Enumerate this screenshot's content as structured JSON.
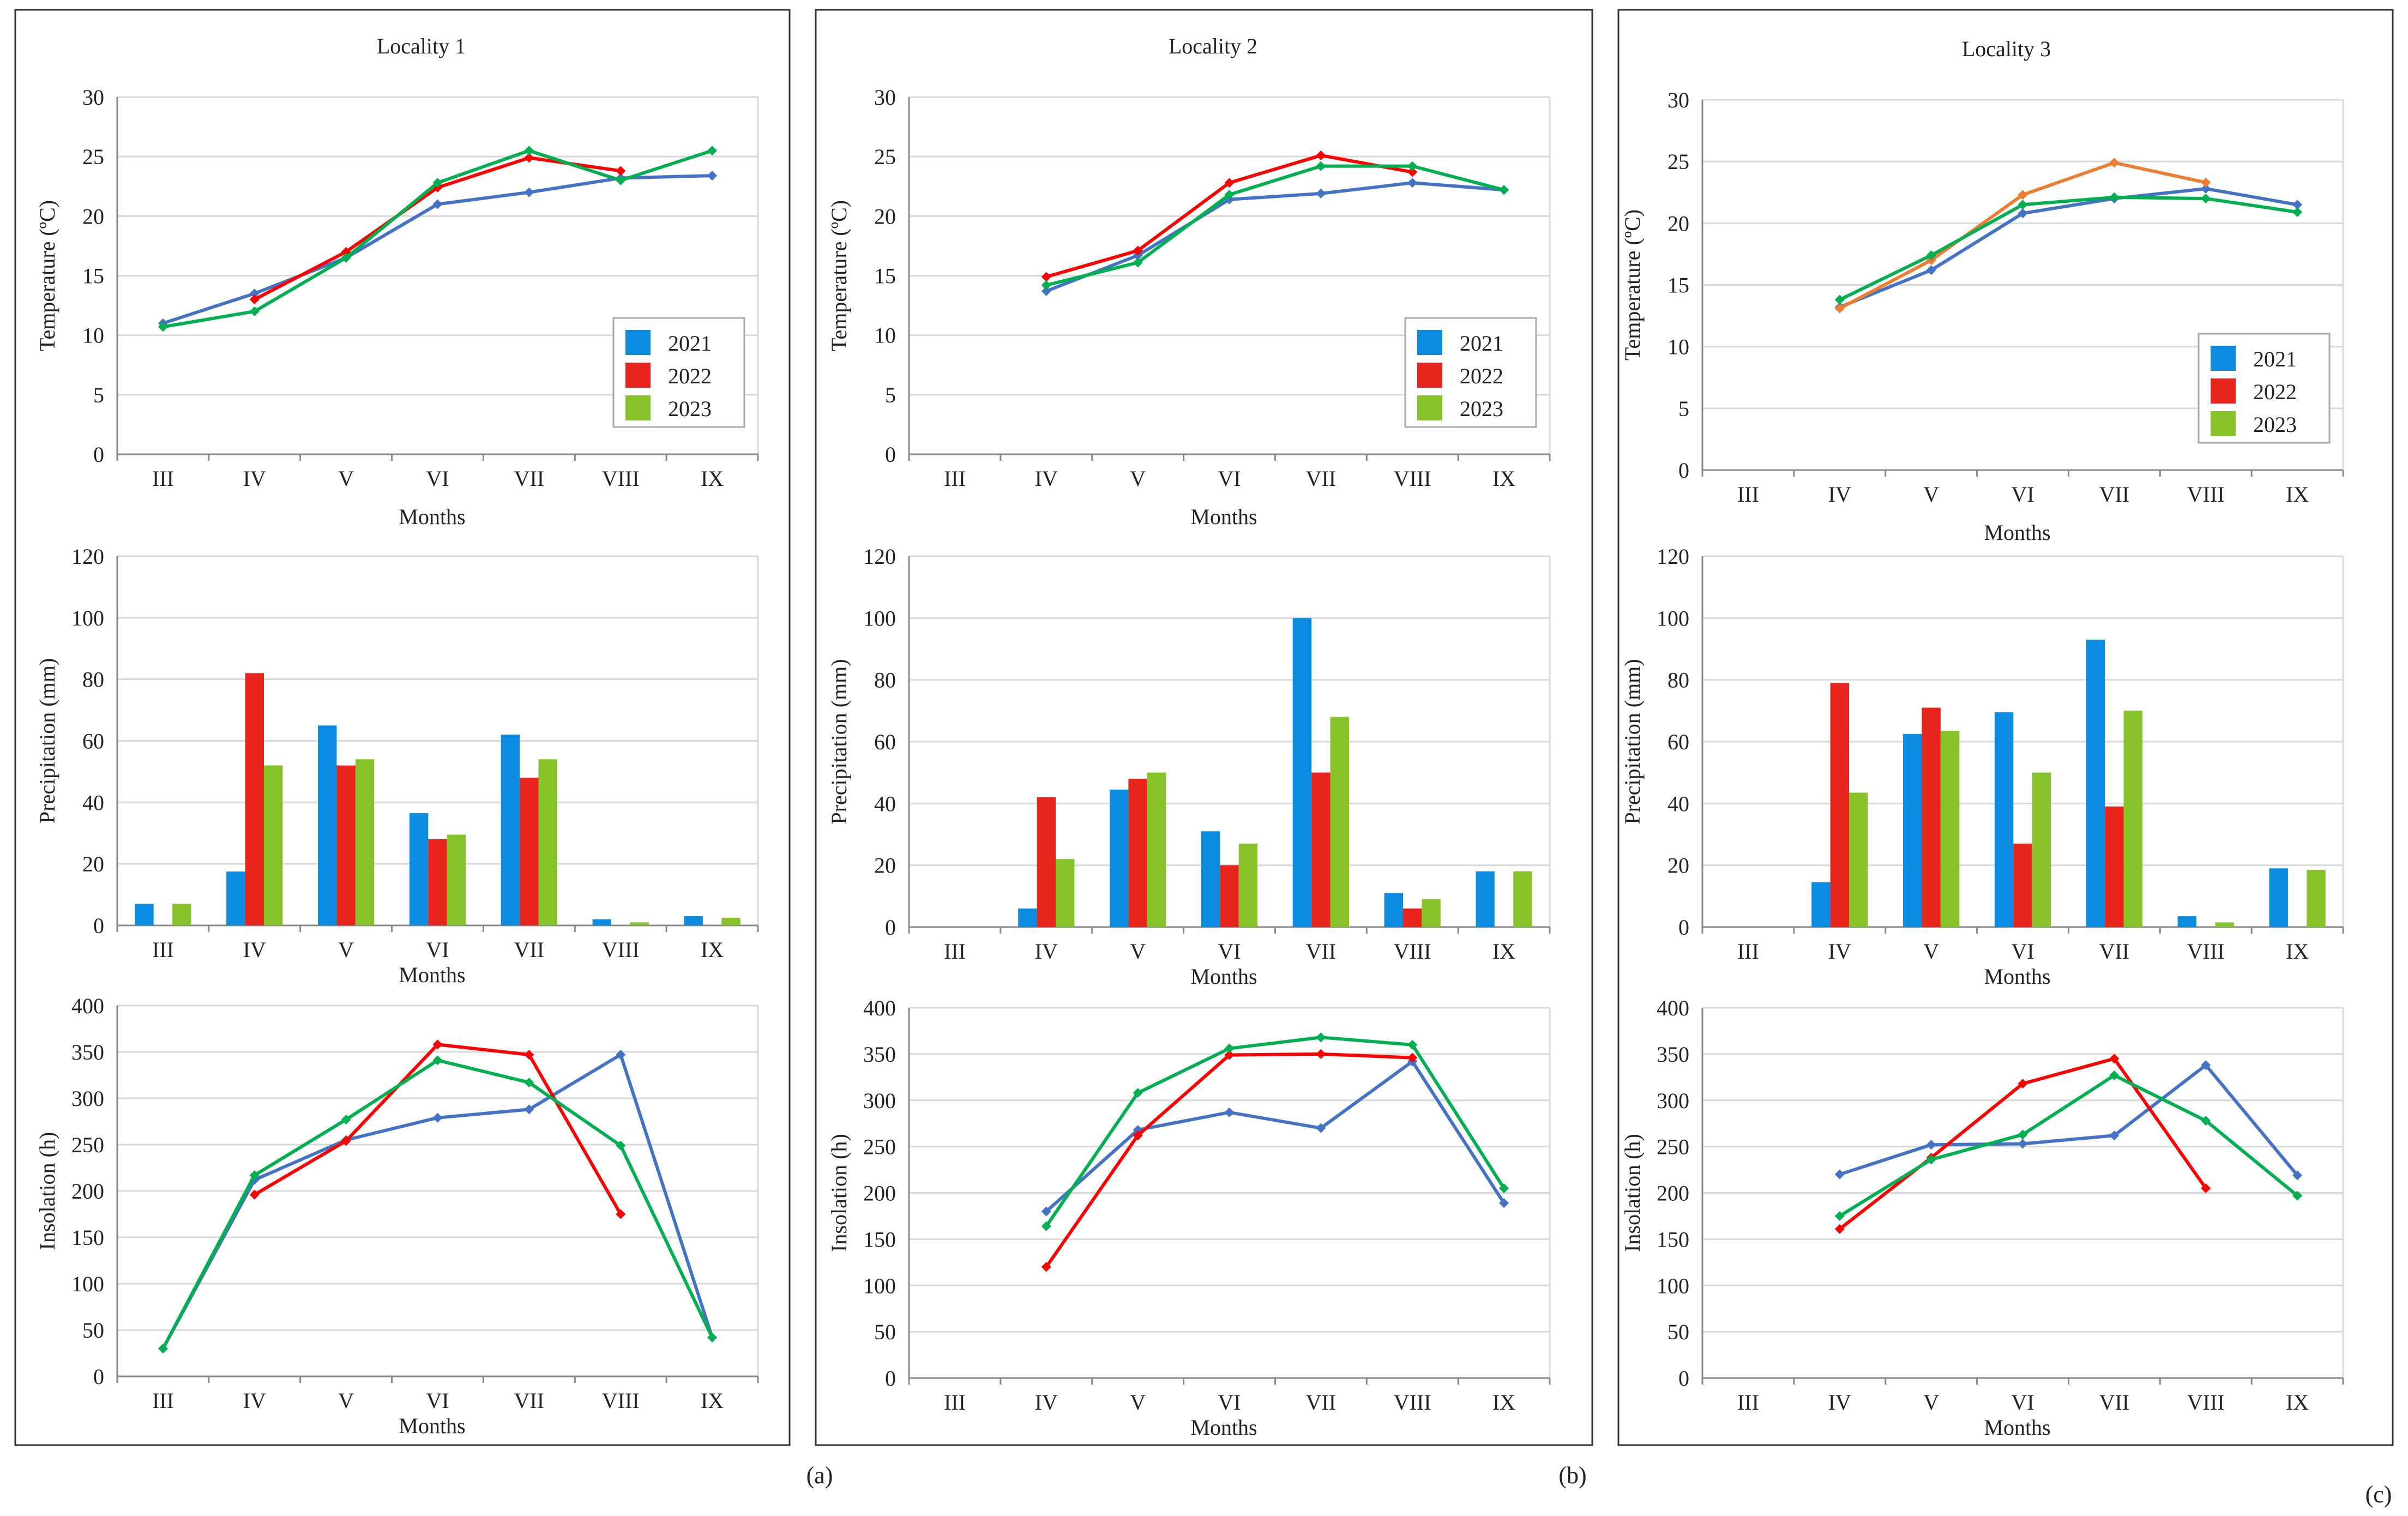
{
  "colors": {
    "blue": "#4472C4",
    "red": "#FF0000",
    "green": "#00B050",
    "orange": "#ED7D31",
    "legend_2021": "#0C8CE0",
    "legend_2022": "#E8251C",
    "legend_2023": "#86C22A",
    "bar_2021": "#0C8CE0",
    "bar_2022": "#E8251C",
    "bar_2023": "#86C22A",
    "grid": "#D9D9D9",
    "axis": "#888888",
    "frame": "#333333"
  },
  "months": [
    "III",
    "IV",
    "V",
    "VI",
    "VII",
    "VIII",
    "IX"
  ],
  "panel_labels": [
    "(a)",
    "(b)",
    "(c)"
  ],
  "chart_data": [
    {
      "panel": 0,
      "type": "line",
      "title": "Locality 1",
      "xlabel": "Months",
      "ylabel": "Temperature (ºC)",
      "ylim": [
        0,
        30
      ],
      "yticks": [
        0,
        5,
        10,
        15,
        20,
        25,
        30
      ],
      "categories": [
        "III",
        "IV",
        "V",
        "VI",
        "VII",
        "VIII",
        "IX"
      ],
      "legend": [
        "2021",
        "2022",
        "2023"
      ],
      "series": [
        {
          "name": "2021",
          "color": "#4472C4",
          "values": [
            11,
            13.5,
            16.5,
            21,
            22,
            23.2,
            23.4
          ]
        },
        {
          "name": "2022",
          "color": "#FF0000",
          "values": [
            null,
            13,
            17,
            22.4,
            24.9,
            23.8,
            null
          ]
        },
        {
          "name": "2023",
          "color": "#00B050",
          "values": [
            10.7,
            12,
            16.5,
            22.8,
            25.5,
            23,
            25.5
          ]
        }
      ]
    },
    {
      "panel": 0,
      "type": "bar",
      "title": "",
      "xlabel": "Months",
      "ylabel": "Precipitation (mm)",
      "ylim": [
        0,
        120
      ],
      "yticks": [
        0,
        20,
        40,
        60,
        80,
        100,
        120
      ],
      "categories": [
        "III",
        "IV",
        "V",
        "VI",
        "VII",
        "VIII",
        "IX"
      ],
      "series": [
        {
          "name": "2021",
          "values": [
            7,
            17.5,
            65,
            36.5,
            62,
            2,
            3
          ]
        },
        {
          "name": "2022",
          "values": [
            0,
            82,
            52,
            28,
            48,
            0,
            0
          ]
        },
        {
          "name": "2023",
          "values": [
            7,
            52,
            54,
            29.5,
            54,
            1,
            2.5
          ]
        }
      ]
    },
    {
      "panel": 0,
      "type": "line",
      "title": "",
      "xlabel": "Months",
      "ylabel": "Insolation (h)",
      "ylim": [
        0,
        400
      ],
      "yticks": [
        0,
        50,
        100,
        150,
        200,
        250,
        300,
        350,
        400
      ],
      "categories": [
        "III",
        "IV",
        "V",
        "VI",
        "VII",
        "VIII",
        "IX"
      ],
      "series": [
        {
          "name": "2021",
          "color": "#4472C4",
          "values": [
            30,
            212,
            255,
            279,
            288,
            347,
            42
          ]
        },
        {
          "name": "2022",
          "color": "#FF0000",
          "values": [
            null,
            196,
            254,
            358,
            347,
            175,
            null
          ]
        },
        {
          "name": "2023",
          "color": "#00B050",
          "values": [
            30,
            217,
            277,
            341,
            317,
            249,
            42
          ]
        }
      ]
    },
    {
      "panel": 1,
      "type": "line",
      "title": "Locality 2",
      "xlabel": "Months",
      "ylabel": "Temperature (ºC)",
      "ylim": [
        0,
        30
      ],
      "yticks": [
        0,
        5,
        10,
        15,
        20,
        25,
        30
      ],
      "categories": [
        "III",
        "IV",
        "V",
        "VI",
        "VII",
        "VIII",
        "IX"
      ],
      "legend": [
        "2021",
        "2022",
        "2023"
      ],
      "series": [
        {
          "name": "2021",
          "color": "#4472C4",
          "values": [
            null,
            13.7,
            16.7,
            21.4,
            21.9,
            22.8,
            22.2
          ]
        },
        {
          "name": "2022",
          "color": "#FF0000",
          "values": [
            null,
            14.9,
            17.1,
            22.8,
            25.1,
            23.7,
            null
          ]
        },
        {
          "name": "2023",
          "color": "#00B050",
          "values": [
            null,
            14.2,
            16.1,
            21.8,
            24.2,
            24.2,
            22.2
          ]
        }
      ]
    },
    {
      "panel": 1,
      "type": "bar",
      "title": "",
      "xlabel": "Months",
      "ylabel": "Precipitation (mm)",
      "ylim": [
        0,
        120
      ],
      "yticks": [
        0,
        20,
        40,
        60,
        80,
        100,
        120
      ],
      "categories": [
        "III",
        "IV",
        "V",
        "VI",
        "VII",
        "VIII",
        "IX"
      ],
      "series": [
        {
          "name": "2021",
          "values": [
            0,
            6,
            44.5,
            31,
            100,
            11,
            18
          ]
        },
        {
          "name": "2022",
          "values": [
            0,
            42,
            48,
            20,
            50,
            6,
            0
          ]
        },
        {
          "name": "2023",
          "values": [
            0,
            22,
            50,
            27,
            68,
            9,
            18
          ]
        }
      ]
    },
    {
      "panel": 1,
      "type": "line",
      "title": "",
      "xlabel": "Months",
      "ylabel": "Insolation (h)",
      "ylim": [
        0,
        400
      ],
      "yticks": [
        0,
        50,
        100,
        150,
        200,
        250,
        300,
        350,
        400
      ],
      "categories": [
        "III",
        "IV",
        "V",
        "VI",
        "VII",
        "VIII",
        "IX"
      ],
      "series": [
        {
          "name": "2021",
          "color": "#4472C4",
          "values": [
            null,
            180,
            268,
            287,
            270,
            342,
            189
          ]
        },
        {
          "name": "2022",
          "color": "#FF0000",
          "values": [
            null,
            120,
            262,
            349,
            350,
            346,
            null
          ]
        },
        {
          "name": "2023",
          "color": "#00B050",
          "values": [
            null,
            164,
            308,
            356,
            368,
            360,
            205
          ]
        }
      ]
    },
    {
      "panel": 2,
      "type": "line",
      "title": "Locality 3",
      "xlabel": "Months",
      "ylabel": "Temperature (ºC)",
      "ylim": [
        0,
        30
      ],
      "yticks": [
        0,
        5,
        10,
        15,
        20,
        25,
        30
      ],
      "categories": [
        "III",
        "IV",
        "V",
        "VI",
        "VII",
        "VIII",
        "IX"
      ],
      "legend": [
        "2021",
        "2022",
        "2023"
      ],
      "series": [
        {
          "name": "2021",
          "color": "#4472C4",
          "values": [
            null,
            13.2,
            16.2,
            20.8,
            22,
            22.8,
            21.5
          ]
        },
        {
          "name": "2022",
          "color": "#ED7D31",
          "values": [
            null,
            13.1,
            17,
            22.3,
            24.9,
            23.3,
            null
          ]
        },
        {
          "name": "2023",
          "color": "#00B050",
          "values": [
            null,
            13.8,
            17.4,
            21.5,
            22.1,
            22,
            20.9
          ]
        }
      ]
    },
    {
      "panel": 2,
      "type": "bar",
      "title": "",
      "xlabel": "Months",
      "ylabel": "Precipitation (mm)",
      "ylim": [
        0,
        120
      ],
      "yticks": [
        0,
        20,
        40,
        60,
        80,
        100,
        120
      ],
      "categories": [
        "III",
        "IV",
        "V",
        "VI",
        "VII",
        "VIII",
        "IX"
      ],
      "series": [
        {
          "name": "2021",
          "values": [
            0,
            14.5,
            62.5,
            69.5,
            93,
            3.5,
            19
          ]
        },
        {
          "name": "2022",
          "values": [
            0,
            79,
            71,
            27,
            39,
            0,
            0
          ]
        },
        {
          "name": "2023",
          "values": [
            0,
            43.5,
            63.5,
            50,
            70,
            1.5,
            18.5
          ]
        }
      ]
    },
    {
      "panel": 2,
      "type": "line",
      "title": "",
      "xlabel": "Months",
      "ylabel": "Insolation (h)",
      "ylim": [
        0,
        400
      ],
      "yticks": [
        0,
        50,
        100,
        150,
        200,
        250,
        300,
        350,
        400
      ],
      "categories": [
        "III",
        "IV",
        "V",
        "VI",
        "VII",
        "VIII",
        "IX"
      ],
      "series": [
        {
          "name": "2021",
          "color": "#4472C4",
          "values": [
            null,
            220,
            252,
            253,
            262,
            338,
            219
          ]
        },
        {
          "name": "2022",
          "color": "#FF0000",
          "values": [
            null,
            161,
            238,
            318,
            345,
            205,
            null
          ]
        },
        {
          "name": "2023",
          "color": "#00B050",
          "values": [
            null,
            175,
            236,
            263,
            327,
            278,
            197
          ]
        }
      ]
    }
  ]
}
